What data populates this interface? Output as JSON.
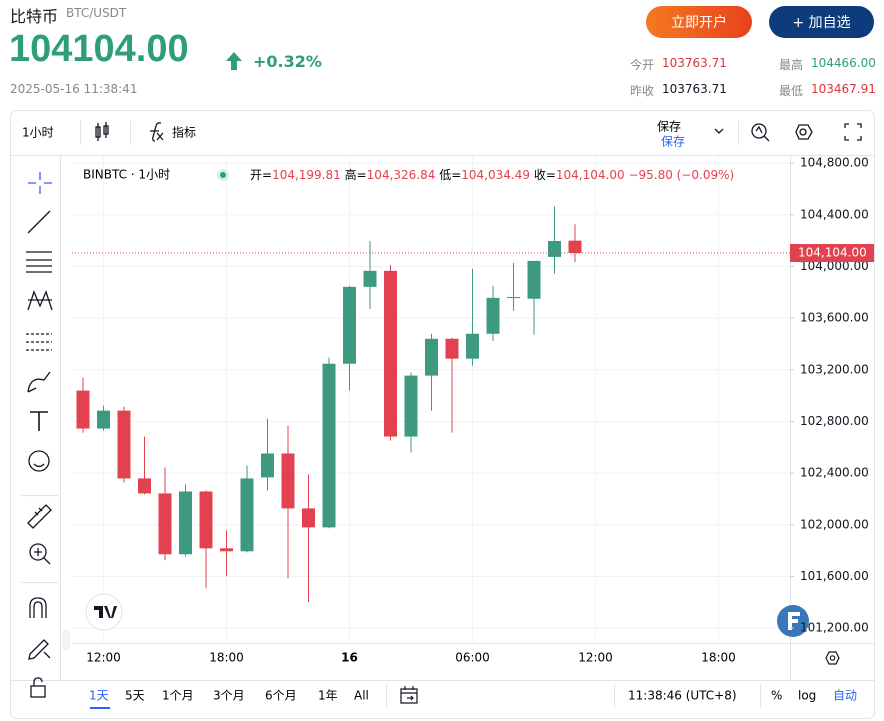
{
  "header": {
    "name": "比特币",
    "pair": "BTC/USDT",
    "price": "104104.00",
    "change": "+0.32%",
    "datetime": "2025-05-16 11:38:41",
    "buttons": [
      "立即开户",
      "+ 加自选"
    ],
    "stats": [
      {
        "label": "今开",
        "value": "103763.71"
      },
      {
        "label": "最高",
        "value": "104466.00"
      },
      {
        "label": "昨收",
        "value": "103763.71"
      },
      {
        "label": "最低",
        "value": "103467.91"
      }
    ]
  },
  "toolbar": {
    "interval": "1小时",
    "indicators": "指标",
    "save": "保存",
    "save_sub": "保存"
  },
  "legend": {
    "symbol": "BINBTC · 1小时",
    "items": [
      {
        "label": "开=",
        "value": "104,199.81"
      },
      {
        "label": "高=",
        "value": "104,326.84"
      },
      {
        "label": "低=",
        "value": "104,034.49"
      },
      {
        "label": "收=",
        "value": "104,104.00"
      }
    ],
    "change": "−95.80 (−0.09%)"
  },
  "chart_data": {
    "type": "candlestick",
    "xticks": [
      "12:00",
      "18:00",
      "16",
      "06:00",
      "12:00",
      "18:00"
    ],
    "open": [
      103039,
      102745,
      102884,
      102359,
      102243,
      101772,
      102258,
      101818,
      101795,
      102367,
      102552,
      102127,
      101980,
      103247,
      103842,
      103966,
      102683,
      103155,
      103440,
      103286,
      103479,
      103757,
      103750,
      104074,
      104199.81
    ],
    "high": [
      103139,
      102923,
      102915,
      102683,
      102444,
      102313,
      102266,
      101957,
      102459,
      102822,
      102768,
      102390,
      103294,
      103850,
      104197,
      104012,
      103178,
      103479,
      103448,
      103981,
      103850,
      104028,
      104043,
      104466,
      104326.84
    ],
    "low": [
      102714,
      102730,
      102328,
      102235,
      101726,
      101756,
      101509,
      101602,
      101787,
      102266,
      101586,
      101401,
      101973,
      103039,
      103672,
      102652,
      102560,
      102884,
      102714,
      103232,
      103425,
      103657,
      103471,
      103943,
      104034.49
    ],
    "close": [
      102745,
      102884,
      102359,
      102243,
      101772,
      102258,
      101818,
      101795,
      102359,
      102552,
      102127,
      101980,
      103247,
      103842,
      103966,
      102683,
      103155,
      103440,
      103286,
      103479,
      103757,
      103763,
      104043,
      104197,
      104104
    ],
    "up_color": "#3d9a80",
    "down_color": "#e2424f",
    "ylim": [
      101085,
      104855
    ],
    "yticks": [
      {
        "value": 101200,
        "label": "101,200.00"
      },
      {
        "value": 101600,
        "label": "101,600.00"
      },
      {
        "value": 102000,
        "label": "102,000.00"
      },
      {
        "value": 102400,
        "label": "102,400.00"
      },
      {
        "value": 102800,
        "label": "102,800.00"
      },
      {
        "value": 103200,
        "label": "103,200.00"
      },
      {
        "value": 103600,
        "label": "103,600.00"
      },
      {
        "value": 104000,
        "label": "104,000.00"
      },
      {
        "value": 104400,
        "label": "104,400.00"
      },
      {
        "value": 104800,
        "label": "104,800.00"
      }
    ],
    "price_line": {
      "value": 104104,
      "label": "104,104.00"
    },
    "grid": true
  },
  "footer": {
    "ranges": [
      "1天",
      "5天",
      "1个月",
      "3个月",
      "6个月",
      "1年",
      "All"
    ],
    "clock": "11:38:46 (UTC+8)",
    "percent": "%",
    "log": "log",
    "auto": "自动"
  }
}
